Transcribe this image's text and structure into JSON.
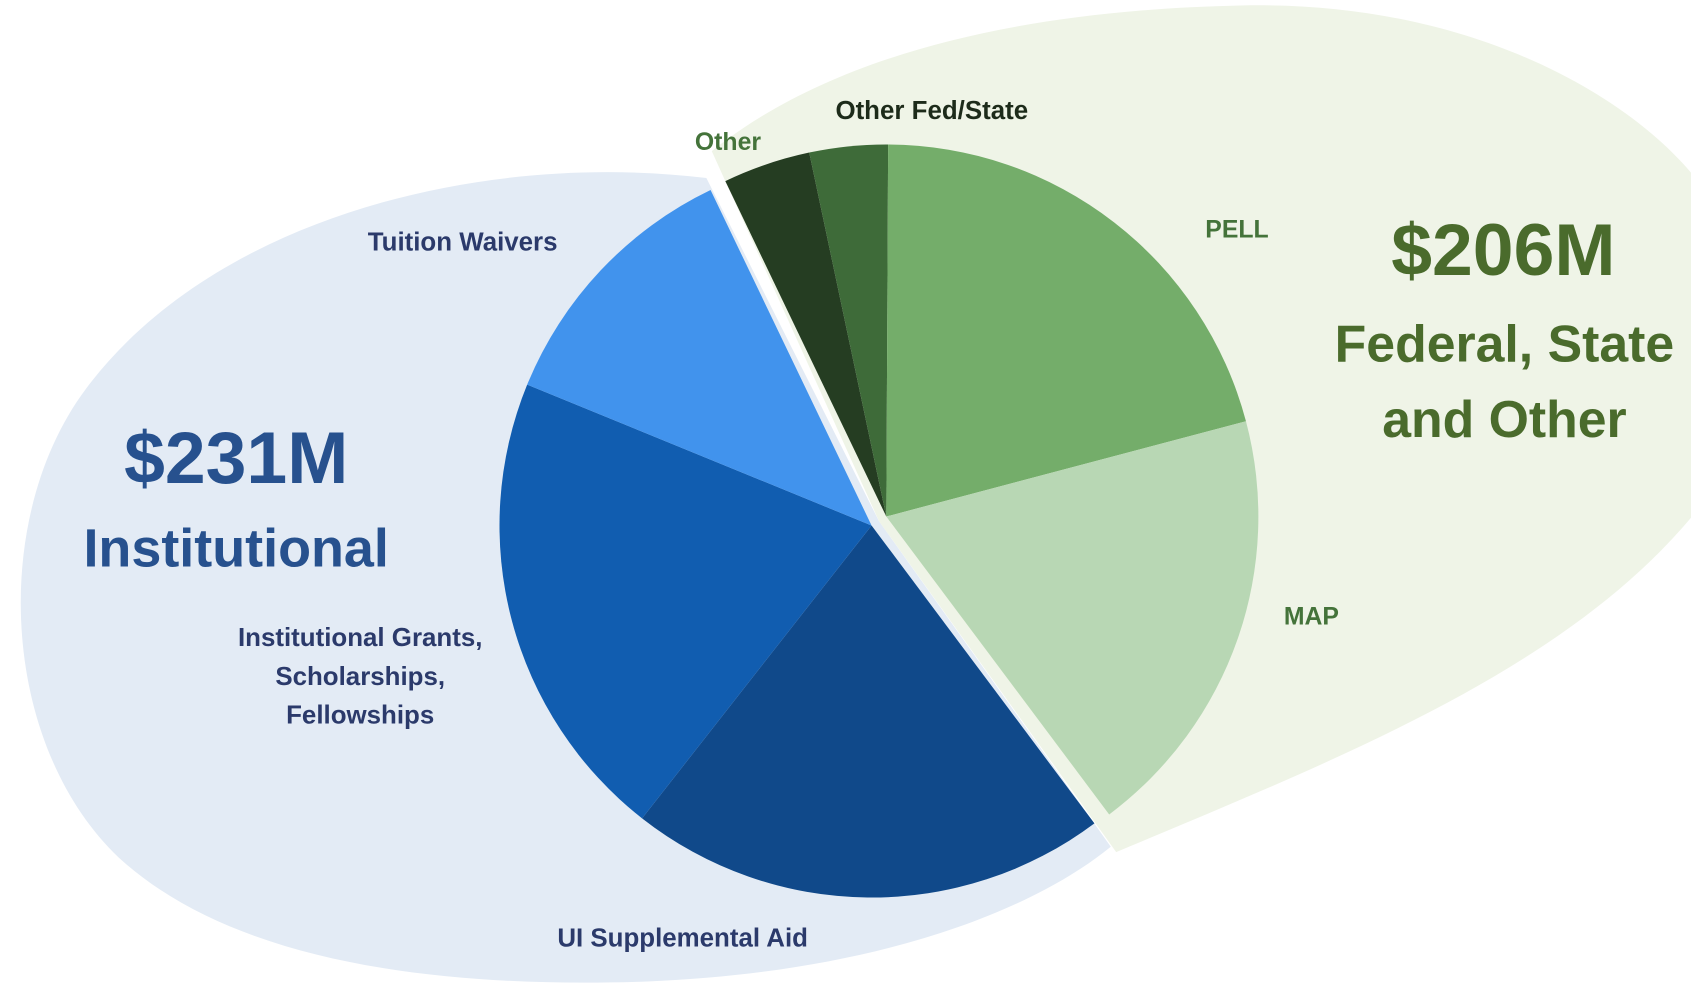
{
  "chart_data": {
    "type": "pie",
    "groups": [
      {
        "total": "$231M",
        "name": "Institutional",
        "categories": [
          "UI Supplemental Aid",
          "Institutional Grants, Scholarships, Fellowships",
          "Tuition Waivers"
        ],
        "values": [
          20.8,
          20.6,
          11.7
        ],
        "colors": [
          "#10498a",
          "#115db0",
          "#4193ed"
        ]
      },
      {
        "total": "$206M",
        "name": "Federal, State and Other",
        "categories": [
          "Other",
          "Other Fed/State",
          "PELL",
          "MAP"
        ],
        "values": [
          3.8,
          3.4,
          20.8,
          18.9
        ],
        "colors": [
          "#253d22",
          "#3e6b39",
          "#74ad6a",
          "#b8d7b4"
        ]
      }
    ]
  }
}
